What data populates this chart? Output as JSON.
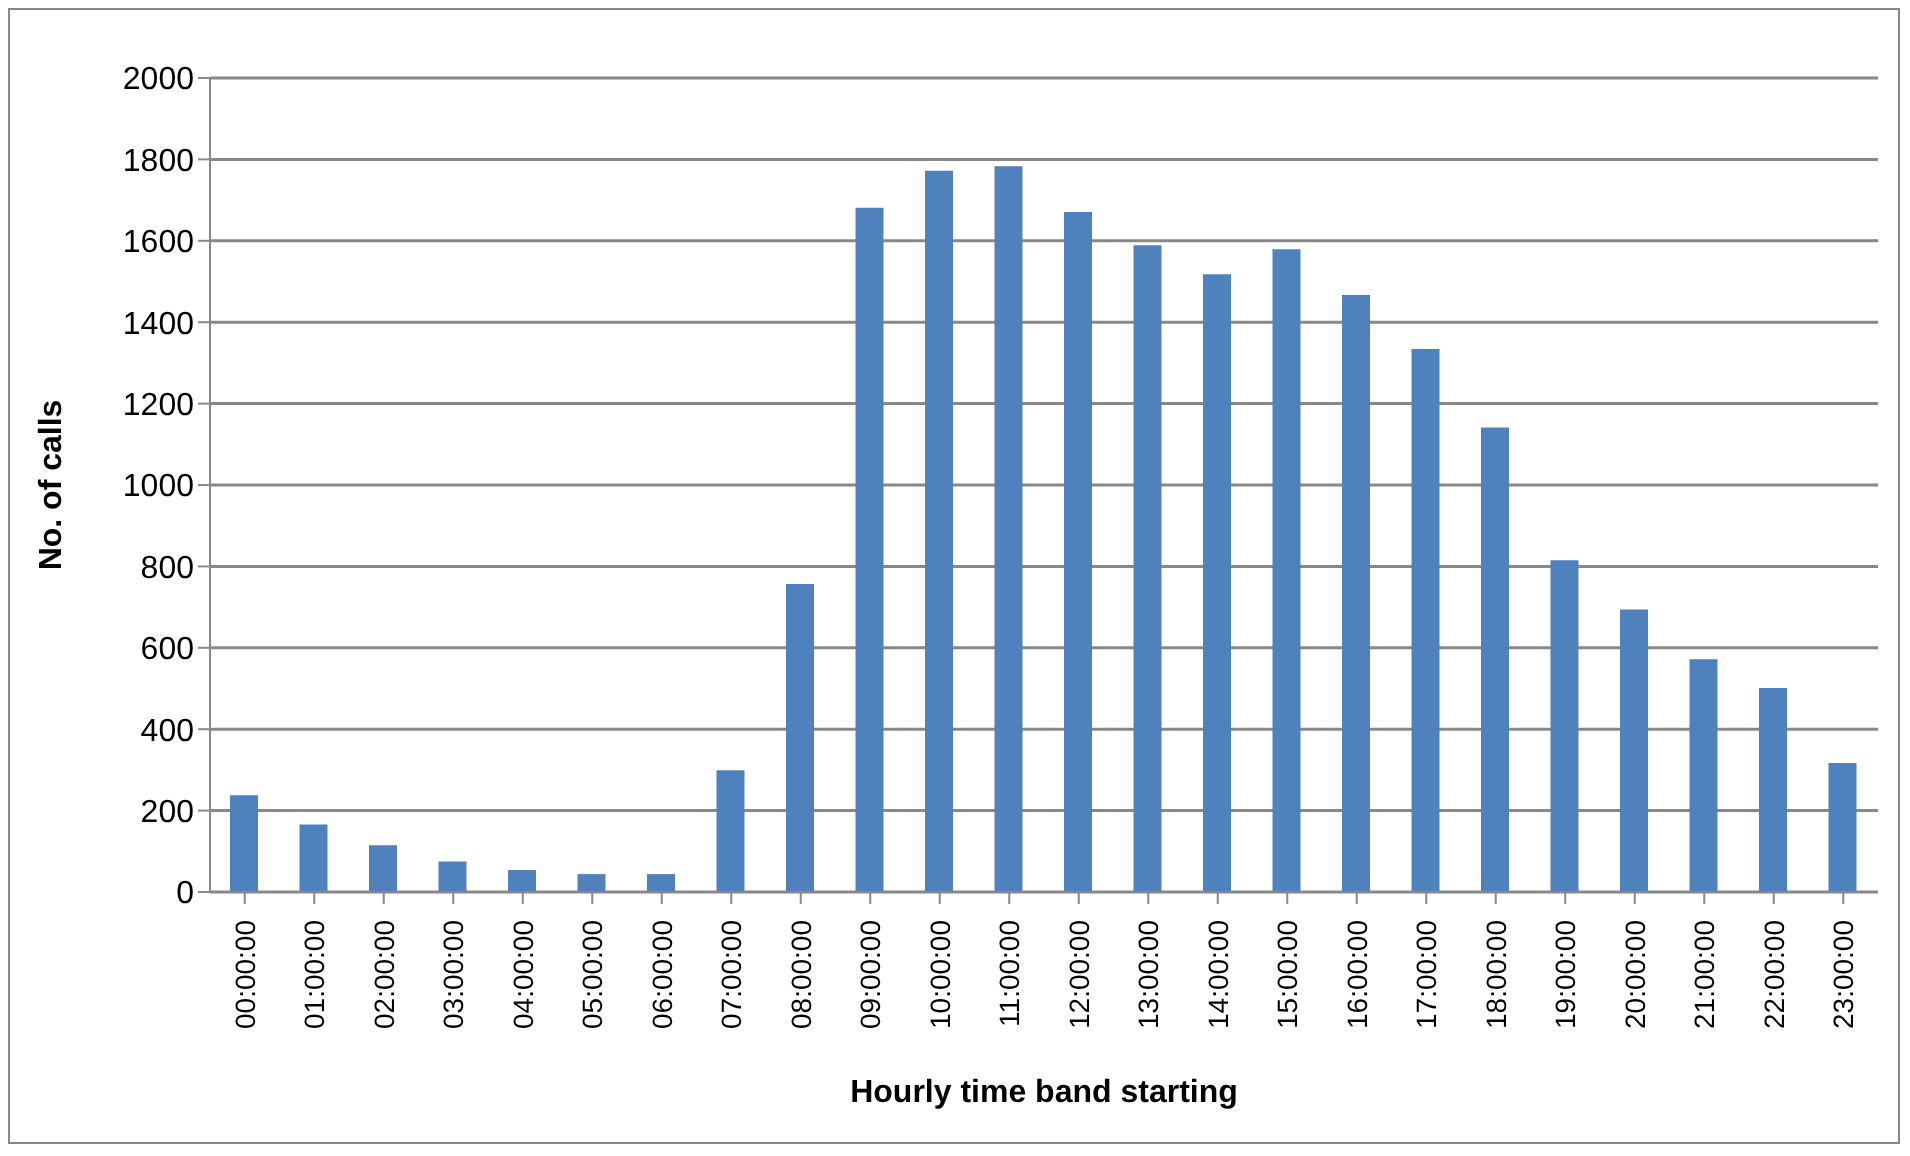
{
  "chart_data": {
    "type": "bar",
    "xlabel": "Hourly time band starting",
    "ylabel": "No. of calls",
    "categories": [
      "00:00:00",
      "01:00:00",
      "02:00:00",
      "03:00:00",
      "04:00:00",
      "05:00:00",
      "06:00:00",
      "07:00:00",
      "08:00:00",
      "09:00:00",
      "10:00:00",
      "11:00:00",
      "12:00:00",
      "13:00:00",
      "14:00:00",
      "15:00:00",
      "16:00:00",
      "17:00:00",
      "18:00:00",
      "19:00:00",
      "20:00:00",
      "21:00:00",
      "22:00:00",
      "23:00:00"
    ],
    "values": [
      238,
      166,
      115,
      75,
      54,
      44,
      44,
      299,
      757,
      1681,
      1772,
      1783,
      1671,
      1589,
      1518,
      1579,
      1467,
      1334,
      1141,
      815,
      694,
      572,
      501,
      317
    ],
    "color": "#4f81bd",
    "ylim": [
      0,
      2000
    ],
    "yticks": [
      0,
      200,
      400,
      600,
      800,
      1000,
      1200,
      1400,
      1600,
      1800,
      2000
    ],
    "grid": "y",
    "legend": false
  }
}
